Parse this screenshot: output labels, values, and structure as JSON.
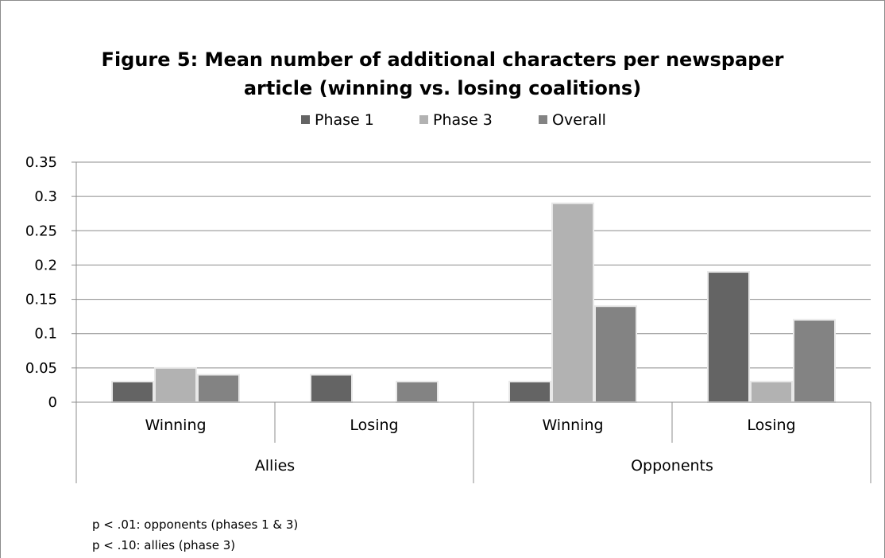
{
  "chart_data": {
    "type": "bar",
    "title": "Figure 5: Mean number of additional characters per newspaper article (winning vs. losing coalitions)",
    "title_lines": [
      "Figure 5: Mean number of additional characters per newspaper",
      "article (winning vs. losing coalitions)"
    ],
    "groups": [
      {
        "label": "Allies",
        "categories": [
          "Winning",
          "Losing"
        ]
      },
      {
        "label": "Opponents",
        "categories": [
          "Winning",
          "Losing"
        ]
      }
    ],
    "series": [
      {
        "name": "Phase 1",
        "color": "#646464",
        "values": [
          0.03,
          0.04,
          0.03,
          0.19
        ]
      },
      {
        "name": "Phase 3",
        "color": "#b2b2b2",
        "values": [
          0.05,
          0,
          0.29,
          0.03
        ]
      },
      {
        "name": "Overall",
        "color": "#838383",
        "values": [
          0.04,
          0.03,
          0.14,
          0.12
        ]
      }
    ],
    "ylim": [
      0,
      0.35
    ],
    "yticks": [
      "0",
      "0.05",
      "0.1",
      "0.15",
      "0.2",
      "0.25",
      "0.3",
      "0.35"
    ],
    "grid": true,
    "legend": "top"
  },
  "notes": [
    "p < .01: opponents (phases 1 & 3)",
    "p < .10: allies (phase 3)"
  ]
}
